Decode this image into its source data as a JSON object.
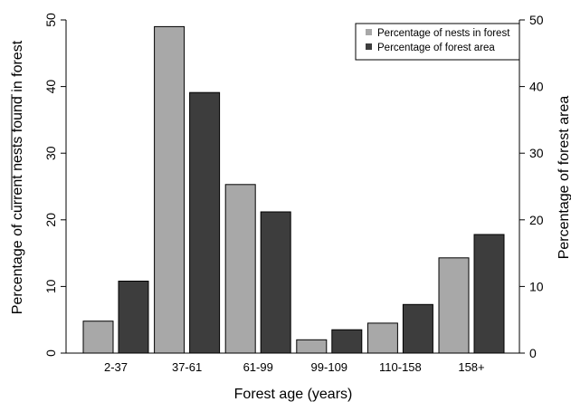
{
  "chart_data": {
    "type": "bar",
    "categories": [
      "2-37",
      "37-61",
      "61-99",
      "99-109",
      "110-158",
      "158+"
    ],
    "series": [
      {
        "name": "Percentage of nests in forest",
        "values": [
          4.8,
          49.0,
          25.3,
          2.0,
          4.5,
          14.3
        ],
        "color": "#a8a8a8"
      },
      {
        "name": "Percentage of forest area",
        "values": [
          10.8,
          39.1,
          21.2,
          3.5,
          7.3,
          17.8
        ],
        "color": "#3d3d3d"
      }
    ],
    "xlabel": "Forest age (years)",
    "ylabel_left": "Percentage of current nests found in forest",
    "ylabel_right": "Percentage of forest area",
    "ylim": [
      0,
      50
    ],
    "yticks": [
      0,
      10,
      20,
      30,
      40,
      50
    ],
    "grid": false,
    "legend_position": "top-right"
  }
}
